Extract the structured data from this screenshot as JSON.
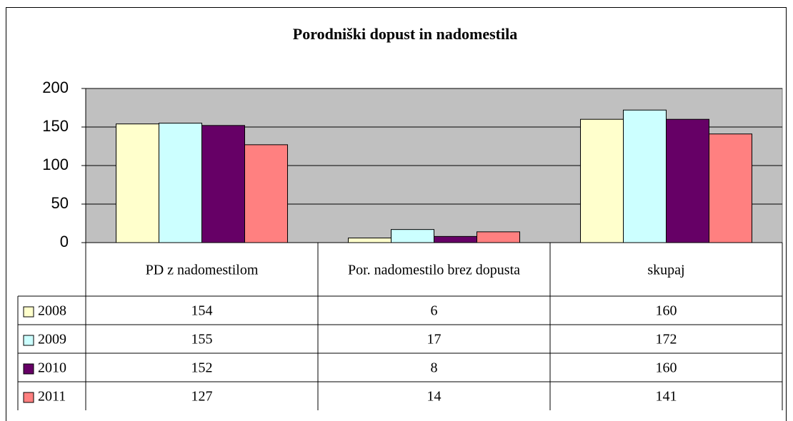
{
  "chart_data": {
    "type": "bar",
    "title": "Porodniški dopust in nadomestila",
    "categories": [
      "PD z nadomestilom",
      "Por. nadomestilo brez dopusta",
      "skupaj"
    ],
    "series": [
      {
        "name": "2008",
        "color": "#ffffcc",
        "values": [
          154,
          6,
          160
        ]
      },
      {
        "name": "2009",
        "color": "#ccffff",
        "values": [
          155,
          17,
          172
        ]
      },
      {
        "name": "2010",
        "color": "#660066",
        "values": [
          152,
          8,
          160
        ]
      },
      {
        "name": "2011",
        "color": "#ff8080",
        "values": [
          127,
          14,
          141
        ]
      }
    ],
    "ylim": [
      0,
      200
    ],
    "yticks": [
      0,
      50,
      100,
      150,
      200
    ],
    "grid": true,
    "plot_background": "#c0c0c0"
  }
}
